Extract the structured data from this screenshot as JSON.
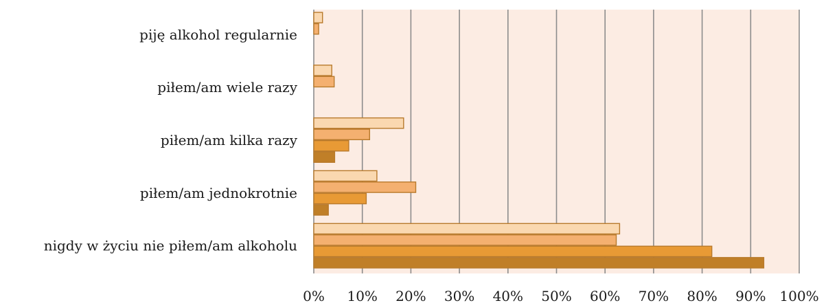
{
  "chart_data": {
    "type": "bar",
    "orientation": "horizontal",
    "categories": [
      "piję alkohol regularnie",
      "piłem/am wiele razy",
      "piłem/am kilka razy",
      "piłem/am jednokrotnie",
      "nigdy w życiu nie piłem/am alkoholu"
    ],
    "series": [
      {
        "values": [
          1.8,
          3.7,
          18.5,
          13.0,
          63.0
        ]
      },
      {
        "values": [
          1.0,
          4.2,
          11.5,
          21.0,
          62.3
        ]
      },
      {
        "values": [
          null,
          null,
          7.2,
          10.8,
          82.0
        ]
      },
      {
        "values": [
          null,
          null,
          4.3,
          3.0,
          92.7
        ]
      }
    ],
    "xlim": [
      0,
      100
    ],
    "x_ticks": [
      "0%",
      "10%",
      "20%",
      "30%",
      "40%",
      "50%",
      "60%",
      "70%",
      "80%",
      "90%",
      "100%"
    ],
    "grid": true,
    "legend": "none",
    "colors": {
      "series": [
        "#fad8b0",
        "#f4b070",
        "#e89a35",
        "#c07f28"
      ],
      "stroke": "#b87a2c",
      "plot_background": "#fcece3",
      "gridline": "#8c8c8c"
    }
  }
}
